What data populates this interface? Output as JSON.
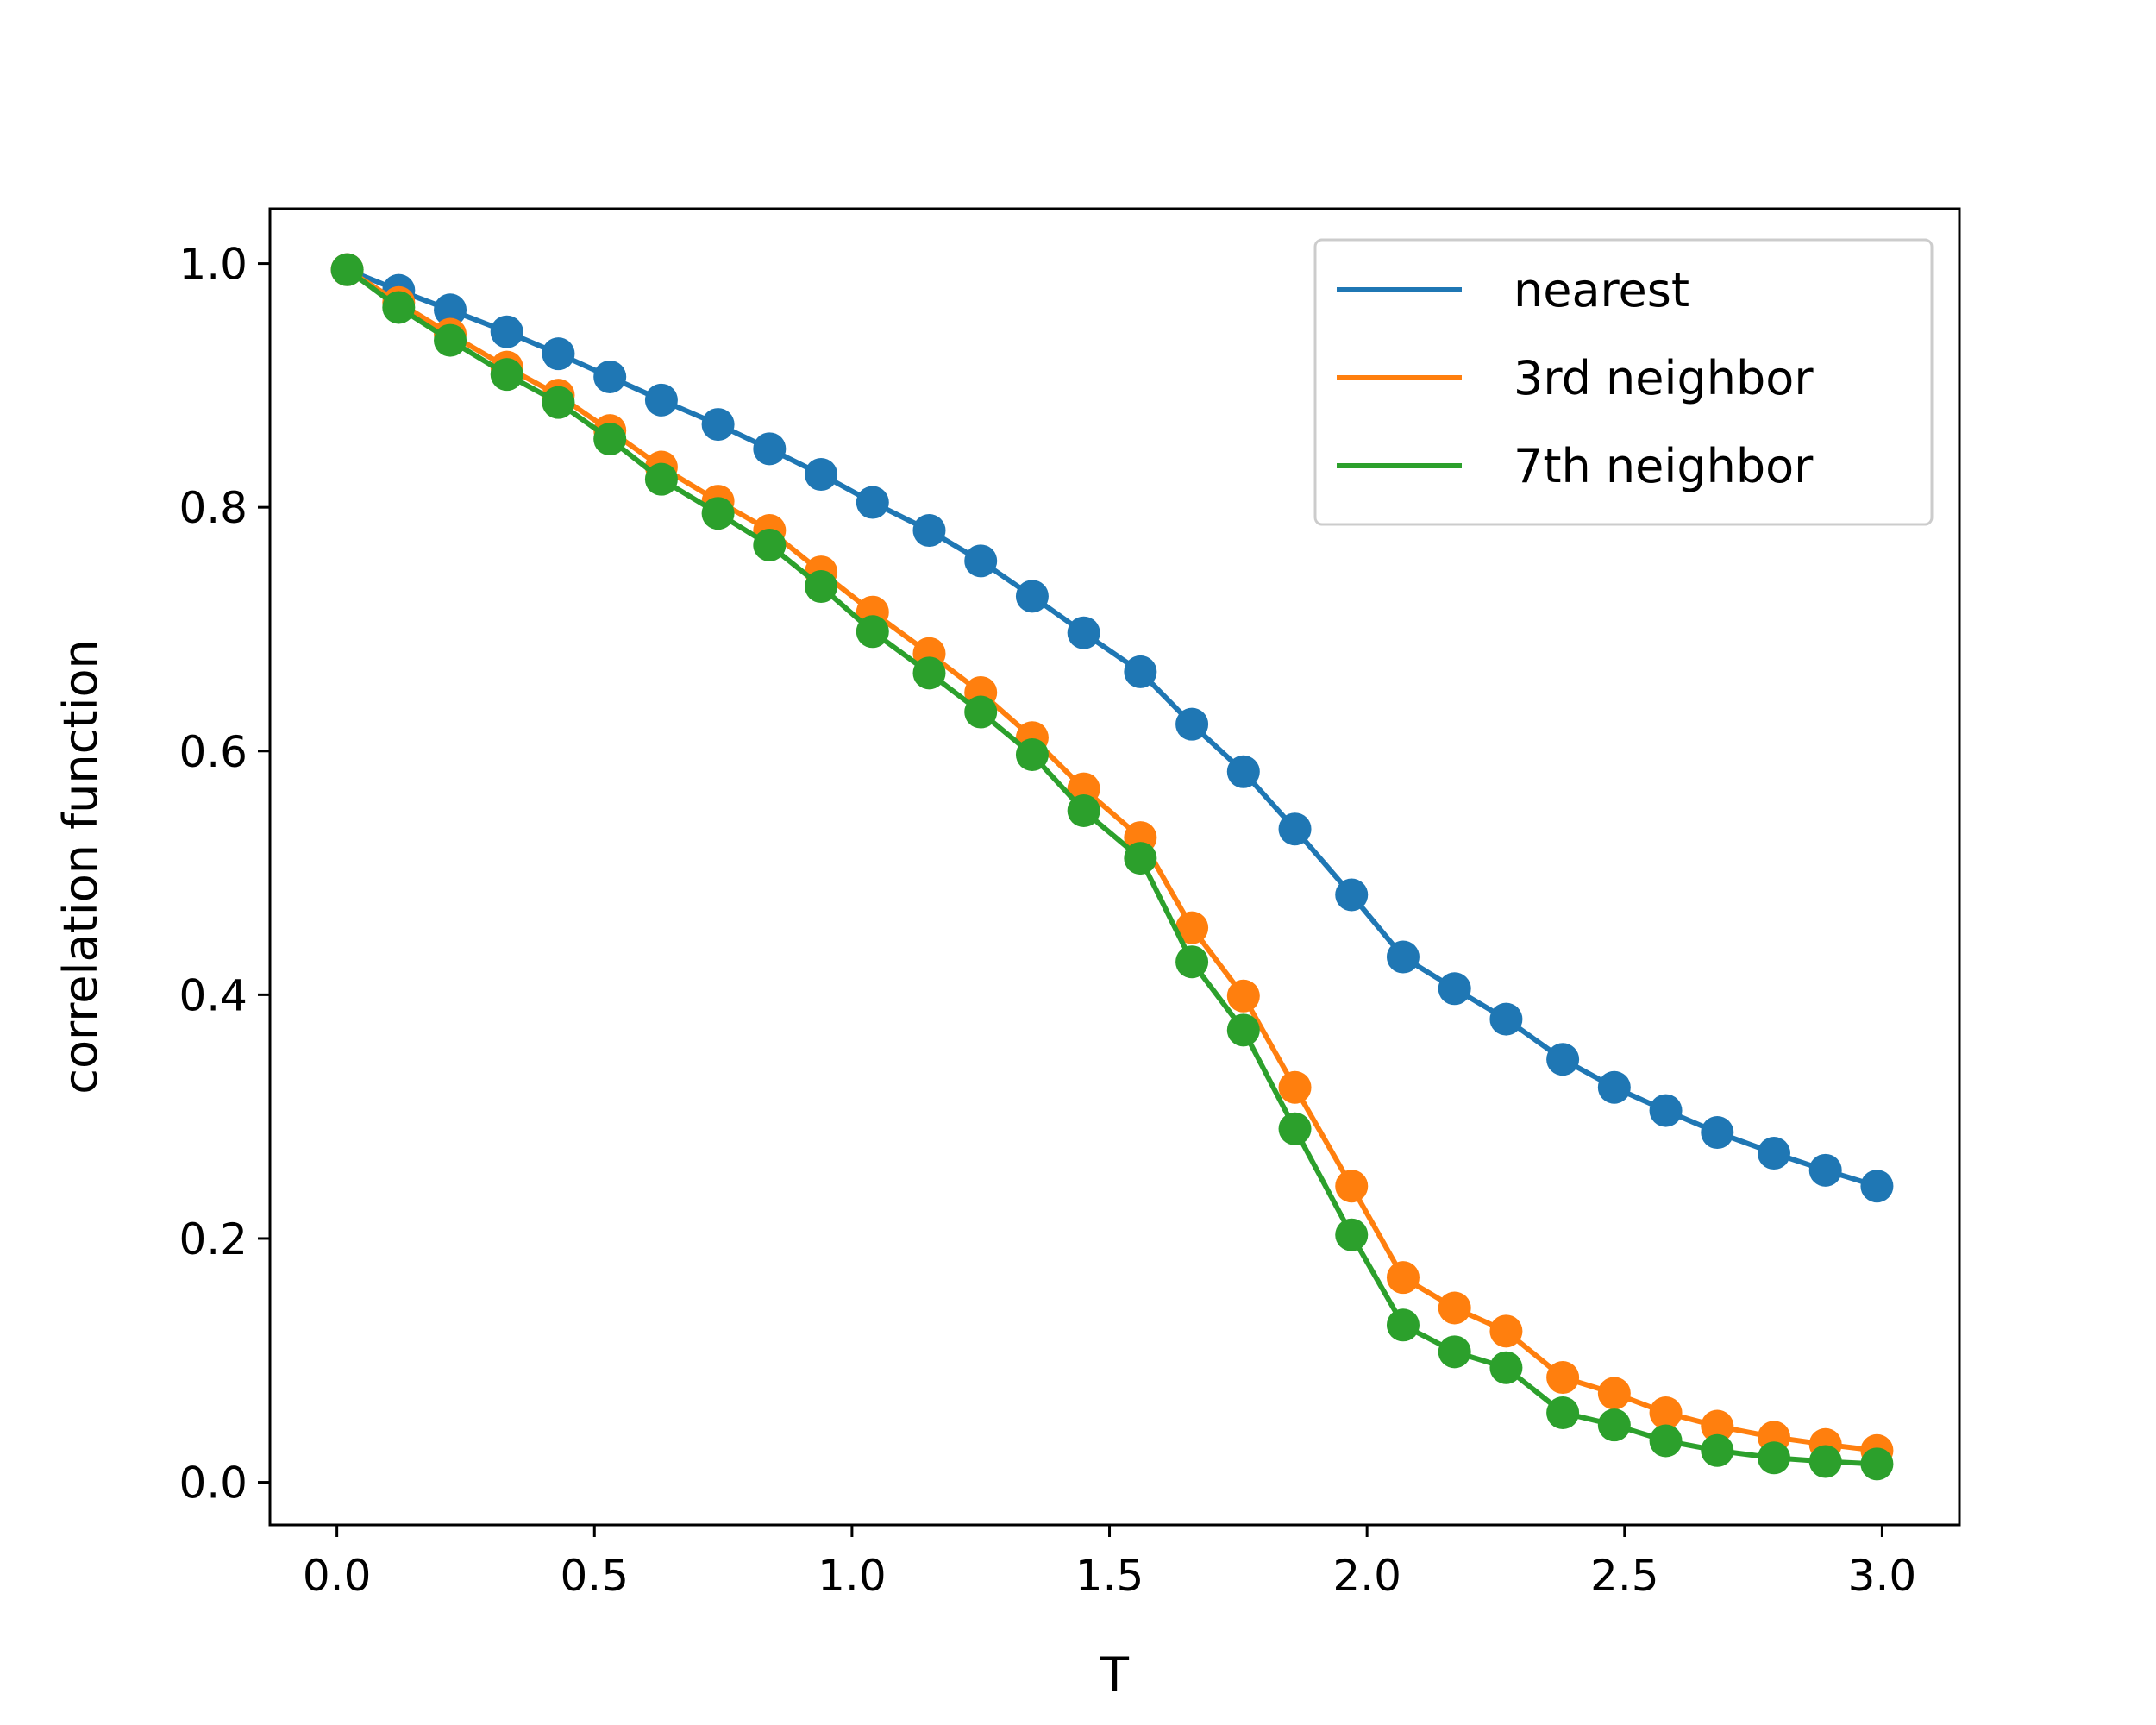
{
  "chart_data": {
    "type": "line",
    "title": "",
    "xlabel": "T",
    "ylabel": "correlation function",
    "xlim": [
      -0.13,
      3.15
    ],
    "ylim": [
      -0.035,
      1.045
    ],
    "xticks": [
      "0.0",
      "0.5",
      "1.0",
      "1.5",
      "2.0",
      "2.5",
      "3.0"
    ],
    "yticks": [
      "0.0",
      "0.2",
      "0.4",
      "0.6",
      "0.8",
      "1.0"
    ],
    "grid": false,
    "legend_position": "top-right",
    "markers": true,
    "x": [
      0.02,
      0.12,
      0.22,
      0.33,
      0.43,
      0.53,
      0.63,
      0.74,
      0.84,
      0.94,
      1.04,
      1.15,
      1.25,
      1.35,
      1.45,
      1.56,
      1.66,
      1.76,
      1.86,
      1.97,
      2.07,
      2.17,
      2.27,
      2.38,
      2.48,
      2.58,
      2.68,
      2.79,
      2.89,
      2.99
    ],
    "series": [
      {
        "name": "nearest",
        "color": "#1f77b4",
        "values": [
          0.995,
          0.978,
          0.962,
          0.944,
          0.926,
          0.907,
          0.888,
          0.868,
          0.848,
          0.827,
          0.804,
          0.781,
          0.756,
          0.727,
          0.697,
          0.665,
          0.622,
          0.583,
          0.536,
          0.482,
          0.431,
          0.405,
          0.38,
          0.347,
          0.324,
          0.305,
          0.287,
          0.27,
          0.256,
          0.243
        ]
      },
      {
        "name": "3rd neighbor",
        "color": "#ff7f0e",
        "values": [
          0.995,
          0.968,
          0.942,
          0.915,
          0.892,
          0.863,
          0.833,
          0.805,
          0.781,
          0.747,
          0.714,
          0.68,
          0.648,
          0.611,
          0.569,
          0.529,
          0.455,
          0.399,
          0.324,
          0.243,
          0.168,
          0.143,
          0.124,
          0.086,
          0.073,
          0.057,
          0.046,
          0.037,
          0.031,
          0.026
        ]
      },
      {
        "name": "7th neighbor",
        "color": "#2ca02c",
        "values": [
          0.995,
          0.964,
          0.937,
          0.909,
          0.886,
          0.856,
          0.823,
          0.795,
          0.769,
          0.735,
          0.698,
          0.664,
          0.632,
          0.597,
          0.551,
          0.512,
          0.427,
          0.371,
          0.29,
          0.203,
          0.129,
          0.107,
          0.094,
          0.057,
          0.047,
          0.034,
          0.026,
          0.02,
          0.017,
          0.015
        ]
      }
    ]
  }
}
